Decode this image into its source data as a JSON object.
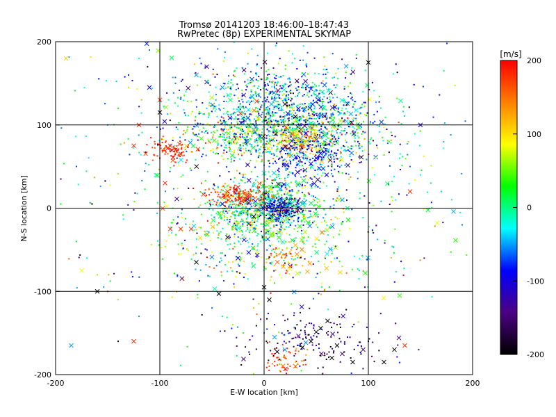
{
  "chart_data": {
    "type": "scatter",
    "title": "Tromsø 20141203 18:46:00–18:47:43",
    "subtitle": "RwPretec (8p) EXPERIMENTAL SKYMAP",
    "xlabel": "E-W location [km]",
    "ylabel": "N-S location [km]",
    "xlim": [
      -200,
      200
    ],
    "ylim": [
      -200,
      200
    ],
    "xticks": [
      -200,
      -100,
      0,
      100,
      200
    ],
    "yticks": [
      -200,
      -100,
      0,
      100,
      200
    ],
    "grid": true,
    "grid_values": [
      -100,
      0,
      100
    ],
    "colorbar": {
      "label": "[m/s]",
      "range": [
        -200,
        200
      ],
      "ticks": [
        200,
        100,
        0,
        -100,
        -200
      ],
      "colormap": "rainbow",
      "stops": [
        "#000000",
        "#4b0082",
        "#0000ff",
        "#00ffff",
        "#00ff00",
        "#ffff00",
        "#ff8000",
        "#ff0000"
      ]
    },
    "series": [
      {
        "marker": "x",
        "points": [
          [
            -190,
            180,
            110
          ],
          [
            -185,
            -165,
            -50
          ],
          [
            -175,
            -75,
            80
          ],
          [
            -160,
            -100,
            -200
          ],
          [
            -125,
            -160,
            180
          ],
          [
            -125,
            75,
            190
          ],
          [
            -120,
            100,
            180
          ],
          [
            -100,
            130,
            180
          ],
          [
            -90,
            75,
            180
          ],
          [
            -85,
            70,
            190
          ],
          [
            -80,
            65,
            185
          ],
          [
            -95,
            30,
            180
          ],
          [
            -90,
            -25,
            180
          ],
          [
            -80,
            -25,
            180
          ],
          [
            -70,
            -25,
            180
          ],
          [
            -65,
            -65,
            -200
          ],
          [
            -40,
            5,
            -100
          ],
          [
            -35,
            -35,
            -200
          ],
          [
            -25,
            -60,
            -100
          ],
          [
            -10,
            -10,
            -200
          ],
          [
            0,
            -95,
            -200
          ],
          [
            5,
            -110,
            -200
          ],
          [
            10,
            130,
            -50
          ],
          [
            20,
            125,
            -200
          ],
          [
            30,
            110,
            -200
          ],
          [
            40,
            90,
            -100
          ],
          [
            50,
            60,
            -100
          ],
          [
            60,
            40,
            -100
          ],
          [
            75,
            10,
            -50
          ],
          [
            80,
            0,
            0
          ],
          [
            45,
            -160,
            -200
          ],
          [
            55,
            -175,
            -150
          ],
          [
            65,
            -180,
            -200
          ],
          [
            70,
            -165,
            -200
          ],
          [
            75,
            -175,
            -150
          ],
          [
            85,
            -185,
            -200
          ],
          [
            95,
            -170,
            -150
          ],
          [
            115,
            -185,
            -200
          ],
          [
            125,
            -170,
            -200
          ],
          [
            135,
            -165,
            180
          ],
          [
            140,
            20,
            180
          ],
          [
            130,
            -105,
            40
          ],
          [
            150,
            100,
            -100
          ],
          [
            -65,
            160,
            -50
          ],
          [
            -40,
            145,
            -50
          ],
          [
            10,
            -155,
            -50
          ],
          [
            20,
            -170,
            -50
          ],
          [
            30,
            -190,
            150
          ],
          [
            -35,
            20,
            180
          ],
          [
            -25,
            25,
            190
          ],
          [
            -15,
            15,
            185
          ],
          [
            -20,
            10,
            180
          ],
          [
            -110,
            145,
            -100
          ],
          [
            -100,
            115,
            -200
          ],
          [
            -55,
            170,
            -120
          ],
          [
            100,
            175,
            -200
          ]
        ]
      },
      {
        "marker": "dot",
        "points": [
          [
            -195,
            5,
            30
          ],
          [
            -195,
            35,
            -150
          ],
          [
            -165,
            5,
            -200
          ],
          [
            -150,
            -100,
            180
          ],
          [
            -140,
            -110,
            60
          ],
          [
            -140,
            -160,
            -200
          ],
          [
            -130,
            145,
            110
          ],
          [
            -120,
            -130,
            -50
          ],
          [
            -105,
            80,
            180
          ],
          [
            -95,
            65,
            180
          ],
          [
            -75,
            55,
            190
          ],
          [
            -60,
            30,
            170
          ],
          [
            -50,
            10,
            60
          ],
          [
            -45,
            -20,
            20
          ],
          [
            -30,
            -5,
            40
          ],
          [
            -20,
            40,
            160
          ],
          [
            -10,
            30,
            120
          ],
          [
            -5,
            20,
            60
          ],
          [
            5,
            20,
            20
          ],
          [
            10,
            15,
            0
          ],
          [
            15,
            10,
            -40
          ],
          [
            20,
            5,
            -80
          ],
          [
            25,
            0,
            -120
          ],
          [
            30,
            -5,
            -90
          ],
          [
            35,
            0,
            -60
          ],
          [
            40,
            5,
            -30
          ],
          [
            45,
            -10,
            20
          ],
          [
            50,
            -20,
            60
          ],
          [
            55,
            -30,
            40
          ],
          [
            60,
            -40,
            0
          ],
          [
            65,
            -50,
            -40
          ],
          [
            70,
            -60,
            -80
          ],
          [
            75,
            -70,
            60
          ],
          [
            20,
            -60,
            130
          ],
          [
            25,
            -70,
            140
          ],
          [
            15,
            -80,
            80
          ],
          [
            10,
            -90,
            30
          ],
          [
            0,
            -100,
            -20
          ],
          [
            -5,
            -115,
            60
          ],
          [
            -10,
            -120,
            120
          ],
          [
            5,
            50,
            -60
          ],
          [
            15,
            60,
            -90
          ],
          [
            25,
            70,
            -100
          ],
          [
            35,
            80,
            -80
          ],
          [
            45,
            90,
            -40
          ],
          [
            55,
            100,
            0
          ],
          [
            65,
            110,
            20
          ],
          [
            75,
            120,
            -30
          ],
          [
            85,
            130,
            -60
          ],
          [
            95,
            140,
            -20
          ],
          [
            -25,
            70,
            120
          ],
          [
            -15,
            80,
            140
          ],
          [
            -5,
            90,
            110
          ],
          [
            5,
            100,
            80
          ],
          [
            -35,
            100,
            30
          ],
          [
            -45,
            110,
            -10
          ],
          [
            -55,
            120,
            -40
          ],
          [
            -65,
            130,
            -70
          ],
          [
            -75,
            140,
            -20
          ],
          [
            -85,
            150,
            -60
          ],
          [
            120,
            80,
            40
          ],
          [
            130,
            60,
            -10
          ],
          [
            140,
            50,
            -60
          ],
          [
            150,
            40,
            -20
          ],
          [
            160,
            30,
            10
          ],
          [
            170,
            20,
            -40
          ],
          [
            180,
            10,
            -10
          ],
          [
            190,
            -20,
            -60
          ],
          [
            -180,
            -40,
            20
          ],
          [
            -170,
            -60,
            -30
          ],
          [
            -160,
            -80,
            60
          ],
          [
            -150,
            100,
            -50
          ],
          [
            -140,
            120,
            30
          ],
          [
            -130,
            160,
            -80
          ],
          [
            -120,
            180,
            -20
          ],
          [
            -110,
            190,
            -60
          ],
          [
            0,
            -150,
            -60
          ],
          [
            10,
            -140,
            -100
          ],
          [
            20,
            -135,
            -140
          ],
          [
            30,
            -145,
            -180
          ],
          [
            40,
            -155,
            -160
          ],
          [
            50,
            -165,
            -120
          ],
          [
            60,
            -150,
            -170
          ],
          [
            70,
            -140,
            -190
          ],
          [
            80,
            -155,
            -150
          ],
          [
            90,
            -165,
            -110
          ],
          [
            100,
            -160,
            -170
          ],
          [
            110,
            -150,
            -130
          ],
          [
            -20,
            -150,
            20
          ],
          [
            -30,
            -140,
            60
          ],
          [
            -40,
            -130,
            -20
          ],
          [
            -50,
            -120,
            -60
          ],
          [
            20,
            -180,
            150
          ],
          [
            25,
            -190,
            170
          ],
          [
            15,
            -195,
            120
          ],
          [
            30,
            -185,
            100
          ],
          [
            10,
            -175,
            190
          ],
          [
            5,
            -190,
            160
          ]
        ]
      }
    ],
    "clusters": [
      {
        "cx": 15,
        "cy": 120,
        "sx": 45,
        "sy": 28,
        "n": 900,
        "vmean": -50,
        "vspread": 60
      },
      {
        "cx": 40,
        "cy": 90,
        "sx": 40,
        "sy": 18,
        "n": 500,
        "vmean": 0,
        "vspread": 100
      },
      {
        "cx": 35,
        "cy": 80,
        "sx": 12,
        "sy": 10,
        "n": 150,
        "vmean": 120,
        "vspread": 30
      },
      {
        "cx": -25,
        "cy": 85,
        "sx": 25,
        "sy": 12,
        "n": 250,
        "vmean": 30,
        "vspread": 70
      },
      {
        "cx": 45,
        "cy": 60,
        "sx": 20,
        "sy": 15,
        "n": 200,
        "vmean": -90,
        "vspread": 30
      },
      {
        "cx": 5,
        "cy": 0,
        "sx": 25,
        "sy": 18,
        "n": 700,
        "vmean": 0,
        "vspread": 60
      },
      {
        "cx": 15,
        "cy": 0,
        "sx": 10,
        "sy": 8,
        "n": 200,
        "vmean": -120,
        "vspread": 50
      },
      {
        "cx": -25,
        "cy": 15,
        "sx": 14,
        "sy": 6,
        "n": 150,
        "vmean": 175,
        "vspread": 25
      },
      {
        "cx": -90,
        "cy": 70,
        "sx": 10,
        "sy": 7,
        "n": 80,
        "vmean": 180,
        "vspread": 15
      },
      {
        "cx": 0,
        "cy": -40,
        "sx": 55,
        "sy": 30,
        "n": 350,
        "vmean": 20,
        "vspread": 70
      },
      {
        "cx": 20,
        "cy": -60,
        "sx": 10,
        "sy": 8,
        "n": 50,
        "vmean": 140,
        "vspread": 30
      },
      {
        "cx": 50,
        "cy": -160,
        "sx": 35,
        "sy": 18,
        "n": 150,
        "vmean": -150,
        "vspread": 50
      },
      {
        "cx": 20,
        "cy": -180,
        "sx": 10,
        "sy": 10,
        "n": 50,
        "vmean": 170,
        "vspread": 25
      },
      {
        "cx": 0,
        "cy": 40,
        "sx": 90,
        "sy": 90,
        "n": 500,
        "vmean": -20,
        "vspread": 100
      }
    ]
  }
}
